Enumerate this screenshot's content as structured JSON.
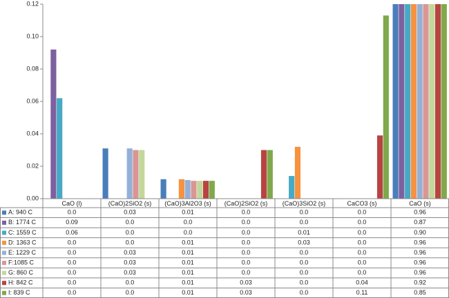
{
  "chart_data": {
    "type": "bar",
    "categories": [
      "CaO (l)",
      "(CaO)2SiO2 (s)",
      "(CaO)3Al2O3 (s)",
      "(CaO)2SiO2 (s)",
      "(CaO)3SiO2 (s)",
      "CaCO3 (s)",
      "CaO (s)"
    ],
    "ylim": [
      0,
      0.12
    ],
    "yticks": [
      {
        "value": 0,
        "label": "0.00"
      },
      {
        "value": 0.02,
        "label": "0.02"
      },
      {
        "value": 0.04,
        "label": "0.04"
      },
      {
        "value": 0.06,
        "label": "0.06"
      },
      {
        "value": 0.08,
        "label": "0.08"
      },
      {
        "value": 0.1,
        "label": "0.10"
      },
      {
        "value": 0.12,
        "label": "0.12"
      }
    ],
    "series": [
      {
        "name": "A: 940 C",
        "color": "#4a7ebb",
        "values": [
          0,
          0.031,
          0.012,
          0,
          0,
          0,
          0.96
        ],
        "value_labels": [
          "0.0",
          "0.03",
          "0.01",
          "0.0",
          "0.0",
          "0.0",
          "0.96"
        ]
      },
      {
        "name": "B: 1774 C",
        "color": "#7d60a0",
        "values": [
          0.092,
          0,
          0,
          0,
          0,
          0,
          0.87
        ],
        "value_labels": [
          "0.09",
          "0.0",
          "0.0",
          "0.0",
          "0.0",
          "0.0",
          "0.87"
        ]
      },
      {
        "name": "C: 1559 C",
        "color": "#46aac5",
        "values": [
          0.062,
          0,
          0,
          0,
          0.014,
          0,
          0.9
        ],
        "value_labels": [
          "0.06",
          "0.0",
          "0.0",
          "0.0",
          "0.01",
          "0.0",
          "0.90"
        ]
      },
      {
        "name": "D: 1363 C",
        "color": "#f69240",
        "values": [
          0,
          0,
          0.012,
          0,
          0.032,
          0,
          0.96
        ],
        "value_labels": [
          "0.0",
          "0.0",
          "0.01",
          "0.0",
          "0.03",
          "0.0",
          "0.96"
        ]
      },
      {
        "name": "E: 1229 C",
        "color": "#93b1d8",
        "values": [
          0,
          0.031,
          0.0115,
          0,
          0,
          0,
          0.96
        ],
        "value_labels": [
          "0.0",
          "0.03",
          "0.01",
          "0.0",
          "0.0",
          "0.0",
          "0.96"
        ]
      },
      {
        "name": "F:1085 C",
        "color": "#da9694",
        "values": [
          0,
          0.03,
          0.011,
          0,
          0,
          0,
          0.96
        ],
        "value_labels": [
          "0.0",
          "0.03",
          "0.01",
          "0.0",
          "0.0",
          "0.0",
          "0.96"
        ]
      },
      {
        "name": "G: 860 C",
        "color": "#c3d79b",
        "values": [
          0,
          0.03,
          0.011,
          0,
          0,
          0,
          0.96
        ],
        "value_labels": [
          "0.0",
          "0.03",
          "0.01",
          "0.0",
          "0.0",
          "0.0",
          "0.96"
        ]
      },
      {
        "name": "H: 842 C",
        "color": "#b84442",
        "values": [
          0,
          0,
          0.011,
          0.03,
          0,
          0.039,
          0.92
        ],
        "value_labels": [
          "0.0",
          "0.0",
          "0.01",
          "0.03",
          "0.0",
          "0.04",
          "0.92"
        ]
      },
      {
        "name": "I: 839 C",
        "color": "#7fa94a",
        "values": [
          0,
          0,
          0.011,
          0.03,
          0,
          0.113,
          0.85
        ],
        "value_labels": [
          "0.0",
          "0.0",
          "0.01",
          "0.03",
          "0.0",
          "0.11",
          "0.85"
        ]
      }
    ]
  }
}
